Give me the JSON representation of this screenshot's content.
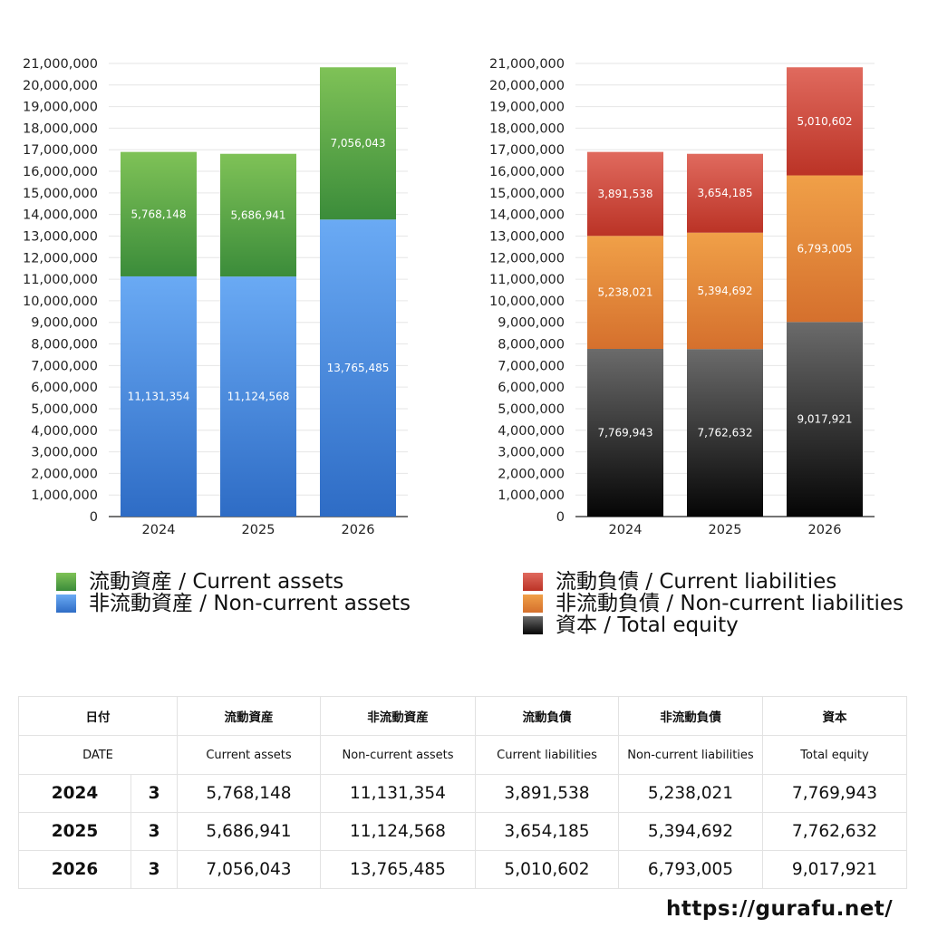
{
  "chart_data": [
    {
      "type": "bar",
      "stacked": true,
      "categories": [
        "2024",
        "2025",
        "2026"
      ],
      "series": [
        {
          "name": "非流動資産 / Non-current assets",
          "values": [
            11131354,
            11124568,
            13765485
          ],
          "labels": [
            "11,131,354",
            "11,124,568",
            "13,765,485"
          ],
          "color_top": "#6aaaf4",
          "color_bottom": "#2e6cc5"
        },
        {
          "name": "流動資産 / Current assets",
          "values": [
            5768148,
            5686941,
            7056043
          ],
          "labels": [
            "5,768,148",
            "5,686,941",
            "7,056,043"
          ],
          "color_top": "#7fc257",
          "color_bottom": "#3b8c3a"
        }
      ],
      "ylim": [
        0,
        21000000
      ],
      "yticks": [
        "0",
        "1,000,000",
        "2,000,000",
        "3,000,000",
        "4,000,000",
        "5,000,000",
        "6,000,000",
        "7,000,000",
        "8,000,000",
        "9,000,000",
        "10,000,000",
        "11,000,000",
        "12,000,000",
        "13,000,000",
        "14,000,000",
        "15,000,000",
        "16,000,000",
        "17,000,000",
        "18,000,000",
        "19,000,000",
        "20,000,000",
        "21,000,000"
      ],
      "grid": true,
      "legend": "bottom"
    },
    {
      "type": "bar",
      "stacked": true,
      "categories": [
        "2024",
        "2025",
        "2026"
      ],
      "series": [
        {
          "name": "資本 / Total equity",
          "values": [
            7769943,
            7762632,
            9017921
          ],
          "labels": [
            "7,769,943",
            "7,762,632",
            "9,017,921"
          ],
          "color_top": "#6b6b6b",
          "color_bottom": "#050505"
        },
        {
          "name": "非流動負債 / Non-current liabilities",
          "values": [
            5238021,
            5394692,
            6793005
          ],
          "labels": [
            "5,238,021",
            "5,394,692",
            "6,793,005"
          ],
          "color_top": "#f0a048",
          "color_bottom": "#d5702d"
        },
        {
          "name": "流動負債 / Current liabilities",
          "values": [
            3891538,
            3654185,
            5010602
          ],
          "labels": [
            "3,891,538",
            "3,654,185",
            "5,010,602"
          ],
          "color_top": "#e06a5e",
          "color_bottom": "#bb3326"
        }
      ],
      "ylim": [
        0,
        21000000
      ],
      "yticks": [
        "0",
        "1,000,000",
        "2,000,000",
        "3,000,000",
        "4,000,000",
        "5,000,000",
        "6,000,000",
        "7,000,000",
        "8,000,000",
        "9,000,000",
        "10,000,000",
        "11,000,000",
        "12,000,000",
        "13,000,000",
        "14,000,000",
        "15,000,000",
        "16,000,000",
        "17,000,000",
        "18,000,000",
        "19,000,000",
        "20,000,000",
        "21,000,000"
      ],
      "grid": true,
      "legend": "bottom"
    }
  ],
  "legend_assets": [
    {
      "label": "流動資産 / Current assets",
      "color": "#4f9e3d"
    },
    {
      "label": "非流動資産 / Non-current assets",
      "color": "#4a8ae0"
    }
  ],
  "legend_liab": [
    {
      "label": "流動負債 / Current liabilities",
      "color": "#cf4336"
    },
    {
      "label": "非流動負債 / Non-current liabilities",
      "color": "#e38735"
    },
    {
      "label": "資本 / Total equity",
      "color": "#2a2a2a"
    }
  ],
  "table": {
    "headers_jp": [
      "日付",
      "流動資産",
      "非流動資産",
      "流動負債",
      "非流動負債",
      "資本"
    ],
    "headers_en": [
      "DATE",
      "Current assets",
      "Non-current assets",
      "Current liabilities",
      "Non-current liabilities",
      "Total equity"
    ],
    "rows": [
      {
        "year": "2024",
        "month": "3",
        "values": [
          "5,768,148",
          "11,131,354",
          "3,891,538",
          "5,238,021",
          "7,769,943"
        ]
      },
      {
        "year": "2025",
        "month": "3",
        "values": [
          "5,686,941",
          "11,124,568",
          "3,654,185",
          "5,394,692",
          "7,762,632"
        ]
      },
      {
        "year": "2026",
        "month": "3",
        "values": [
          "7,056,043",
          "13,765,485",
          "5,010,602",
          "6,793,005",
          "9,017,921"
        ]
      }
    ]
  },
  "footer": "https://gurafu.net/"
}
